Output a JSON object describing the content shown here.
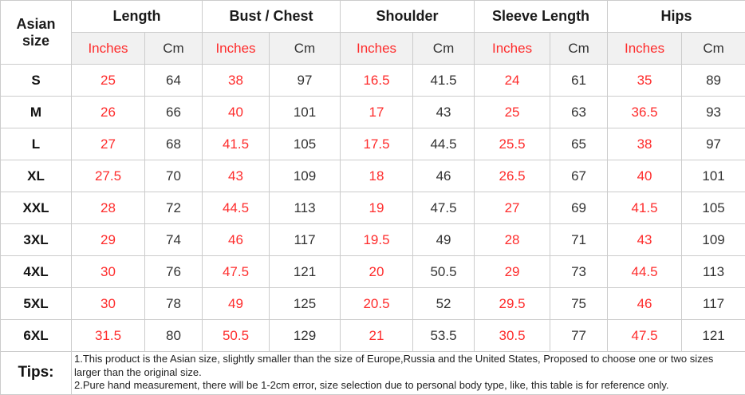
{
  "chart_data": {
    "type": "table",
    "corner_header": "Asian size",
    "column_groups": [
      {
        "label": "Length"
      },
      {
        "label": "Bust / Chest"
      },
      {
        "label": "Shoulder"
      },
      {
        "label": "Sleeve Length"
      },
      {
        "label": "Hips"
      }
    ],
    "units": {
      "inches": "Inches",
      "cm": "Cm"
    },
    "rows": [
      {
        "size": "S",
        "values": [
          "25",
          "64",
          "38",
          "97",
          "16.5",
          "41.5",
          "24",
          "61",
          "35",
          "89"
        ]
      },
      {
        "size": "M",
        "values": [
          "26",
          "66",
          "40",
          "101",
          "17",
          "43",
          "25",
          "63",
          "36.5",
          "93"
        ]
      },
      {
        "size": "L",
        "values": [
          "27",
          "68",
          "41.5",
          "105",
          "17.5",
          "44.5",
          "25.5",
          "65",
          "38",
          "97"
        ]
      },
      {
        "size": "XL",
        "values": [
          "27.5",
          "70",
          "43",
          "109",
          "18",
          "46",
          "26.5",
          "67",
          "40",
          "101"
        ]
      },
      {
        "size": "XXL",
        "values": [
          "28",
          "72",
          "44.5",
          "113",
          "19",
          "47.5",
          "27",
          "69",
          "41.5",
          "105"
        ]
      },
      {
        "size": "3XL",
        "values": [
          "29",
          "74",
          "46",
          "117",
          "19.5",
          "49",
          "28",
          "71",
          "43",
          "109"
        ]
      },
      {
        "size": "4XL",
        "values": [
          "30",
          "76",
          "47.5",
          "121",
          "20",
          "50.5",
          "29",
          "73",
          "44.5",
          "113"
        ]
      },
      {
        "size": "5XL",
        "values": [
          "30",
          "78",
          "49",
          "125",
          "20.5",
          "52",
          "29.5",
          "75",
          "46",
          "117"
        ]
      },
      {
        "size": "6XL",
        "values": [
          "31.5",
          "80",
          "50.5",
          "129",
          "21",
          "53.5",
          "30.5",
          "77",
          "47.5",
          "121"
        ]
      }
    ],
    "tips": {
      "label": "Tips:",
      "lines": [
        "1.This product is the Asian size, slightly smaller than the size of Europe,Russia and the United States, Proposed to choose one or two sizes larger than the original size.",
        "2.Pure hand measurement, there will be 1-2cm error, size selection due to personal body type, like, this table is for reference only."
      ]
    }
  },
  "colors": {
    "accent_red": "#fe2c2c",
    "header_text": "#1a1a1a",
    "value_text": "#333333",
    "border": "#cccccc",
    "unit_row_bg": "#f1f1f1",
    "bg": "#ffffff"
  }
}
